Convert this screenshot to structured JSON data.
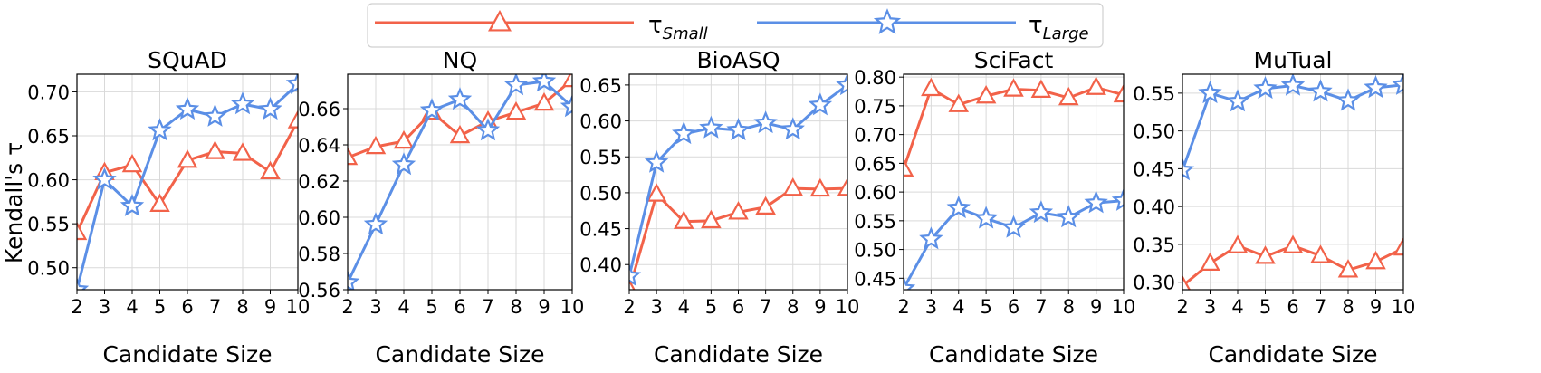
{
  "legend": {
    "entries": [
      {
        "symbol": "τ",
        "sub": "Small",
        "color": "#f26249",
        "marker": "triangle"
      },
      {
        "symbol": "τ",
        "sub": "Large",
        "color": "#5b8fe6",
        "marker": "star"
      }
    ]
  },
  "ylabel": "Kendall's τ",
  "xlabel": "Candidate Size",
  "chart_data": [
    {
      "type": "line",
      "title": "SQuAD",
      "xlim": [
        2,
        10
      ],
      "ylim": [
        0.475,
        0.72
      ],
      "xticks": [
        2,
        3,
        4,
        5,
        6,
        7,
        8,
        9,
        10
      ],
      "yticks": [
        0.5,
        0.55,
        0.6,
        0.65,
        0.7
      ],
      "ytick_labels": [
        "0.50",
        "0.55",
        "0.60",
        "0.65",
        "0.70"
      ],
      "series": [
        {
          "name": "τ_Small",
          "x": [
            2,
            3,
            4,
            5,
            6,
            7,
            8,
            9,
            10
          ],
          "values": [
            0.54,
            0.608,
            0.617,
            0.572,
            0.622,
            0.632,
            0.63,
            0.609,
            0.667
          ]
        },
        {
          "name": "τ_Large",
          "x": [
            2,
            3,
            4,
            5,
            6,
            7,
            8,
            9,
            10
          ],
          "values": [
            0.475,
            0.6,
            0.57,
            0.656,
            0.68,
            0.672,
            0.686,
            0.68,
            0.709
          ]
        }
      ]
    },
    {
      "type": "line",
      "title": "NQ",
      "xlim": [
        2,
        10
      ],
      "ylim": [
        0.56,
        0.679
      ],
      "xticks": [
        2,
        3,
        4,
        5,
        6,
        7,
        8,
        9,
        10
      ],
      "yticks": [
        0.56,
        0.58,
        0.6,
        0.62,
        0.64,
        0.66
      ],
      "ytick_labels": [
        "0.56",
        "0.58",
        "0.60",
        "0.62",
        "0.64",
        "0.66"
      ],
      "series": [
        {
          "name": "τ_Small",
          "x": [
            2,
            3,
            4,
            5,
            6,
            7,
            8,
            9,
            10
          ],
          "values": [
            0.633,
            0.639,
            0.642,
            0.658,
            0.645,
            0.653,
            0.658,
            0.663,
            0.676
          ]
        },
        {
          "name": "τ_Large",
          "x": [
            2,
            3,
            4,
            5,
            6,
            7,
            8,
            9,
            10
          ],
          "values": [
            0.564,
            0.596,
            0.629,
            0.659,
            0.665,
            0.648,
            0.673,
            0.675,
            0.661
          ]
        }
      ]
    },
    {
      "type": "line",
      "title": "BioASQ",
      "xlim": [
        2,
        10
      ],
      "ylim": [
        0.365,
        0.665
      ],
      "xticks": [
        2,
        3,
        4,
        5,
        6,
        7,
        8,
        9,
        10
      ],
      "yticks": [
        0.4,
        0.45,
        0.5,
        0.55,
        0.6,
        0.65
      ],
      "ytick_labels": [
        "0.40",
        "0.45",
        "0.50",
        "0.55",
        "0.60",
        "0.65"
      ],
      "series": [
        {
          "name": "τ_Small",
          "x": [
            2,
            3,
            4,
            5,
            6,
            7,
            8,
            9,
            10
          ],
          "values": [
            0.365,
            0.498,
            0.46,
            0.461,
            0.473,
            0.48,
            0.506,
            0.505,
            0.506
          ]
        },
        {
          "name": "τ_Large",
          "x": [
            2,
            3,
            4,
            5,
            6,
            7,
            8,
            9,
            10
          ],
          "values": [
            0.384,
            0.542,
            0.582,
            0.59,
            0.587,
            0.597,
            0.588,
            0.622,
            0.65
          ]
        }
      ]
    },
    {
      "type": "line",
      "title": "SciFact",
      "xlim": [
        2,
        10
      ],
      "ylim": [
        0.43,
        0.805
      ],
      "xticks": [
        2,
        3,
        4,
        5,
        6,
        7,
        8,
        9,
        10
      ],
      "yticks": [
        0.45,
        0.5,
        0.55,
        0.6,
        0.65,
        0.7,
        0.75,
        0.8
      ],
      "ytick_labels": [
        "0.45",
        "0.50",
        "0.55",
        "0.60",
        "0.65",
        "0.70",
        "0.75",
        "0.80"
      ],
      "series": [
        {
          "name": "τ_Small",
          "x": [
            2,
            3,
            4,
            5,
            6,
            7,
            8,
            9,
            10
          ],
          "values": [
            0.64,
            0.78,
            0.752,
            0.767,
            0.779,
            0.777,
            0.764,
            0.782,
            0.769
          ]
        },
        {
          "name": "τ_Large",
          "x": [
            2,
            3,
            4,
            5,
            6,
            7,
            8,
            9,
            10
          ],
          "values": [
            0.432,
            0.518,
            0.572,
            0.554,
            0.538,
            0.564,
            0.556,
            0.581,
            0.585
          ]
        }
      ]
    },
    {
      "type": "line",
      "title": "MuTual",
      "xlim": [
        2,
        10
      ],
      "ylim": [
        0.29,
        0.575
      ],
      "xticks": [
        2,
        3,
        4,
        5,
        6,
        7,
        8,
        9,
        10
      ],
      "yticks": [
        0.3,
        0.35,
        0.4,
        0.45,
        0.5,
        0.55
      ],
      "ytick_labels": [
        "0.30",
        "0.35",
        "0.40",
        "0.45",
        "0.50",
        "0.55"
      ],
      "series": [
        {
          "name": "τ_Small",
          "x": [
            2,
            3,
            4,
            5,
            6,
            7,
            8,
            9,
            10
          ],
          "values": [
            0.295,
            0.325,
            0.348,
            0.334,
            0.348,
            0.335,
            0.316,
            0.327,
            0.345
          ]
        },
        {
          "name": "τ_Large",
          "x": [
            2,
            3,
            4,
            5,
            6,
            7,
            8,
            9,
            10
          ],
          "values": [
            0.448,
            0.55,
            0.539,
            0.556,
            0.56,
            0.552,
            0.54,
            0.557,
            0.561
          ]
        }
      ]
    }
  ]
}
